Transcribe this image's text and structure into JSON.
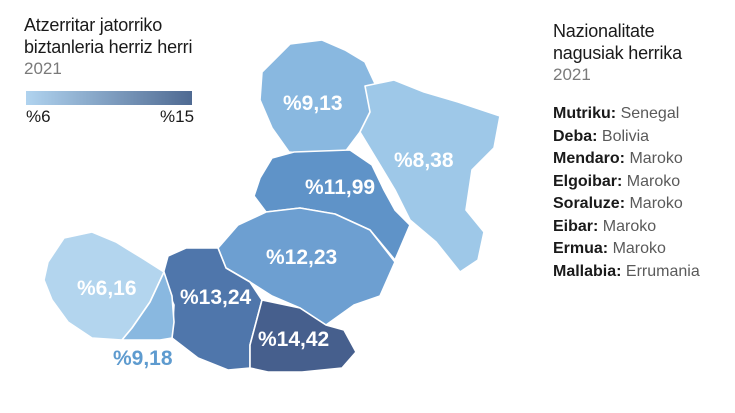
{
  "left": {
    "title_line1": "Atzerritar jatorriko",
    "title_line2": "biztanleria herriz herri",
    "year": "2021",
    "legend": {
      "min_label": "%6",
      "max_label": "%15",
      "color_low": "#b0d3ef",
      "color_high": "#4f6a92"
    }
  },
  "right": {
    "title_line1": "Nazionalitate",
    "title_line2": "nagusiak herrika",
    "year": "2021",
    "rows": [
      {
        "town": "Mutriku:",
        "country": "Senegal"
      },
      {
        "town": "Deba:",
        "country": "Bolivia"
      },
      {
        "town": "Mendaro:",
        "country": "Maroko"
      },
      {
        "town": "Elgoibar:",
        "country": "Maroko"
      },
      {
        "town": "Soraluze:",
        "country": "Maroko"
      },
      {
        "town": "Eibar:",
        "country": "Maroko"
      },
      {
        "town": "Ermua:",
        "country": "Maroko"
      },
      {
        "town": "Mallabia:",
        "country": "Errumania"
      }
    ]
  },
  "map": {
    "regions": [
      {
        "label": "%9,13",
        "color": "#89b8e0"
      },
      {
        "label": "%8,38",
        "color": "#9ec8e8"
      },
      {
        "label": "%11,99",
        "color": "#5f93c8"
      },
      {
        "label": "%12,23",
        "color": "#6d9fd1"
      },
      {
        "label": "%13,24",
        "color": "#4f76ab"
      },
      {
        "label": "%14,42",
        "color": "#465f8d"
      },
      {
        "label": "%6,16",
        "color": "#b3d5ee"
      },
      {
        "label": "%9,18",
        "color": "#89b8e0"
      }
    ]
  }
}
